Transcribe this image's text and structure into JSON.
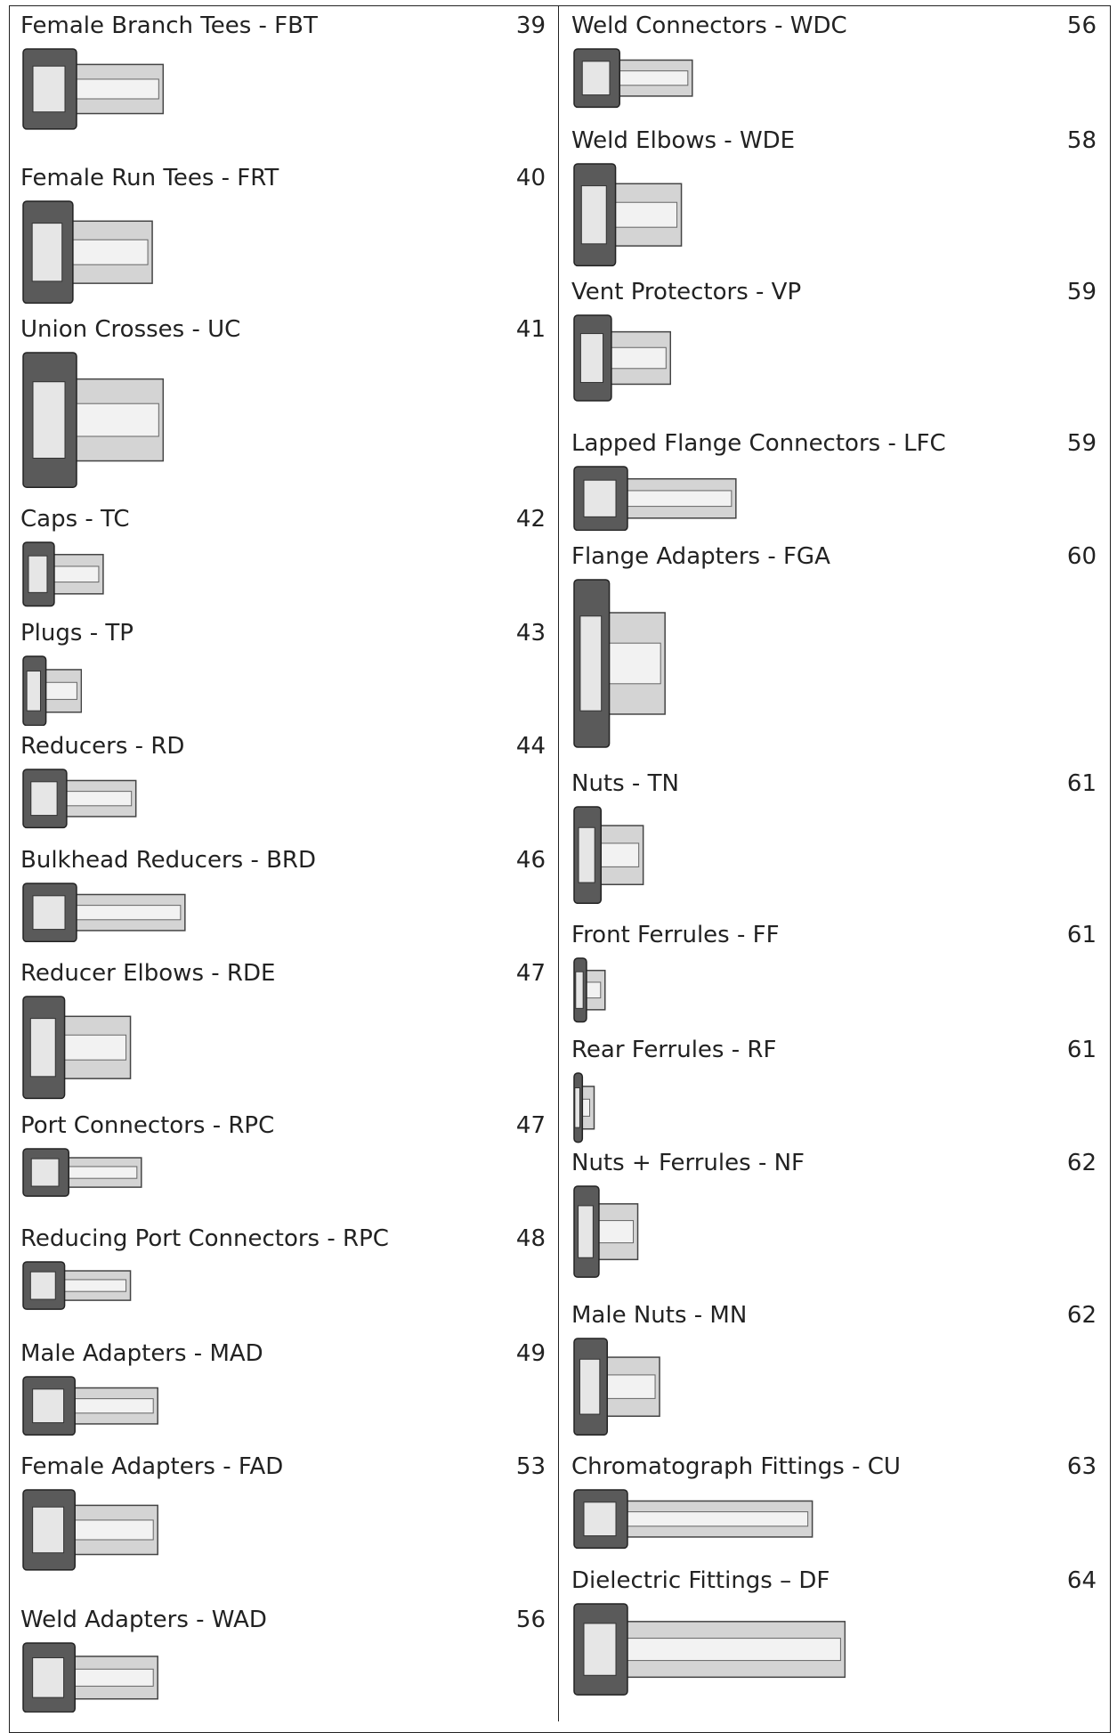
{
  "left": [
    {
      "title": "Female Branch Tees - FBT",
      "page": "39"
    },
    {
      "title": "Female Run Tees - FRT",
      "page": "40"
    },
    {
      "title": "Union Crosses - UC",
      "page": "41"
    },
    {
      "title": "Caps - TC",
      "page": "42"
    },
    {
      "title": "Plugs - TP",
      "page": "43"
    },
    {
      "title": "Reducers - RD",
      "page": "44"
    },
    {
      "title": "Bulkhead Reducers - BRD",
      "page": "46"
    },
    {
      "title": "Reducer Elbows - RDE",
      "page": "47"
    },
    {
      "title": "Port Connectors - RPC",
      "page": "47"
    },
    {
      "title": "Reducing Port Connectors - RPC",
      "page": "48"
    },
    {
      "title": "Male Adapters - MAD",
      "page": "49"
    },
    {
      "title": "Female Adapters - FAD",
      "page": "53"
    },
    {
      "title": "Weld Adapters - WAD",
      "page": "56"
    }
  ],
  "right": [
    {
      "title": "Weld Connectors - WDC",
      "page": "56"
    },
    {
      "title": "Weld Elbows - WDE",
      "page": "58"
    },
    {
      "title": "Vent Protectors - VP",
      "page": "59"
    },
    {
      "title": "Lapped Flange Connectors - LFC",
      "page": "59"
    },
    {
      "title": "Flange Adapters - FGA",
      "page": "60"
    },
    {
      "title": "Nuts - TN",
      "page": "61"
    },
    {
      "title": "Front Ferrules - FF",
      "page": "61"
    },
    {
      "title": "Rear Ferrules - RF",
      "page": "61"
    },
    {
      "title": "Nuts + Ferrules - NF",
      "page": "62"
    },
    {
      "title": "Male Nuts - MN",
      "page": "62"
    },
    {
      "title": "Chromatograph Fittings - CU",
      "page": "63"
    },
    {
      "title": "Dielectric Fittings – DF",
      "page": "64"
    }
  ]
}
